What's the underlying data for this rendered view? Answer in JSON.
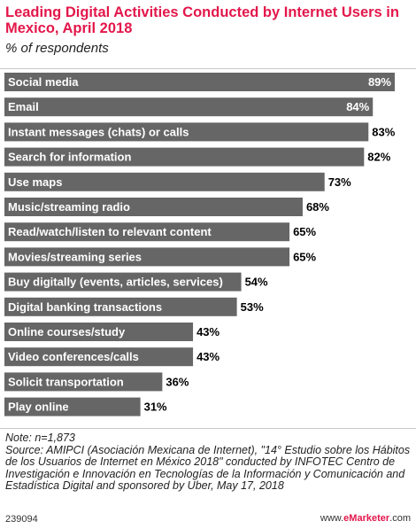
{
  "header": {
    "title": "Leading Digital Activities Conducted by Internet Users in Mexico, April 2018",
    "subtitle": "% of respondents"
  },
  "colors": {
    "title": "#e3174b",
    "bar": "#666666",
    "bar_label": "#ffffff",
    "value_text": "#000000"
  },
  "chart_data": {
    "type": "bar",
    "orientation": "horizontal",
    "title": "Leading Digital Activities Conducted by Internet Users in Mexico, April 2018",
    "subtitle": "% of respondents",
    "xlabel": "",
    "ylabel": "",
    "xlim": [
      0,
      100
    ],
    "grid": false,
    "legend": "none",
    "value_suffix": "%",
    "categories": [
      "Social media",
      "Email",
      "Instant messages (chats) or calls",
      "Search for information",
      "Use maps",
      "Music/streaming radio",
      "Read/watch/listen to relevant content",
      "Movies/streaming series",
      "Buy digitally (events, articles, services)",
      "Digital banking transactions",
      "Online courses/study",
      "Video conferences/calls",
      "Solicit transportation",
      "Play online"
    ],
    "values": [
      89,
      84,
      83,
      82,
      73,
      68,
      65,
      65,
      54,
      53,
      43,
      43,
      36,
      31
    ]
  },
  "footer": {
    "note": "Note: n=1,873",
    "source": "Source: AMIPCI (Asociación Mexicana de Internet), \"14° Estudio sobre los Hábitos de los Usuarios de Internet en México 2018\" conducted by INFOTEC Centro de Investigación e Innovación en Tecnologías de la Información y Comunicación and Estadística Digital and sponsored by Uber, May 17, 2018",
    "chart_id": "239094",
    "brand_prefix": "www.",
    "brand_name": "eMarketer",
    "brand_suffix": ".com"
  }
}
